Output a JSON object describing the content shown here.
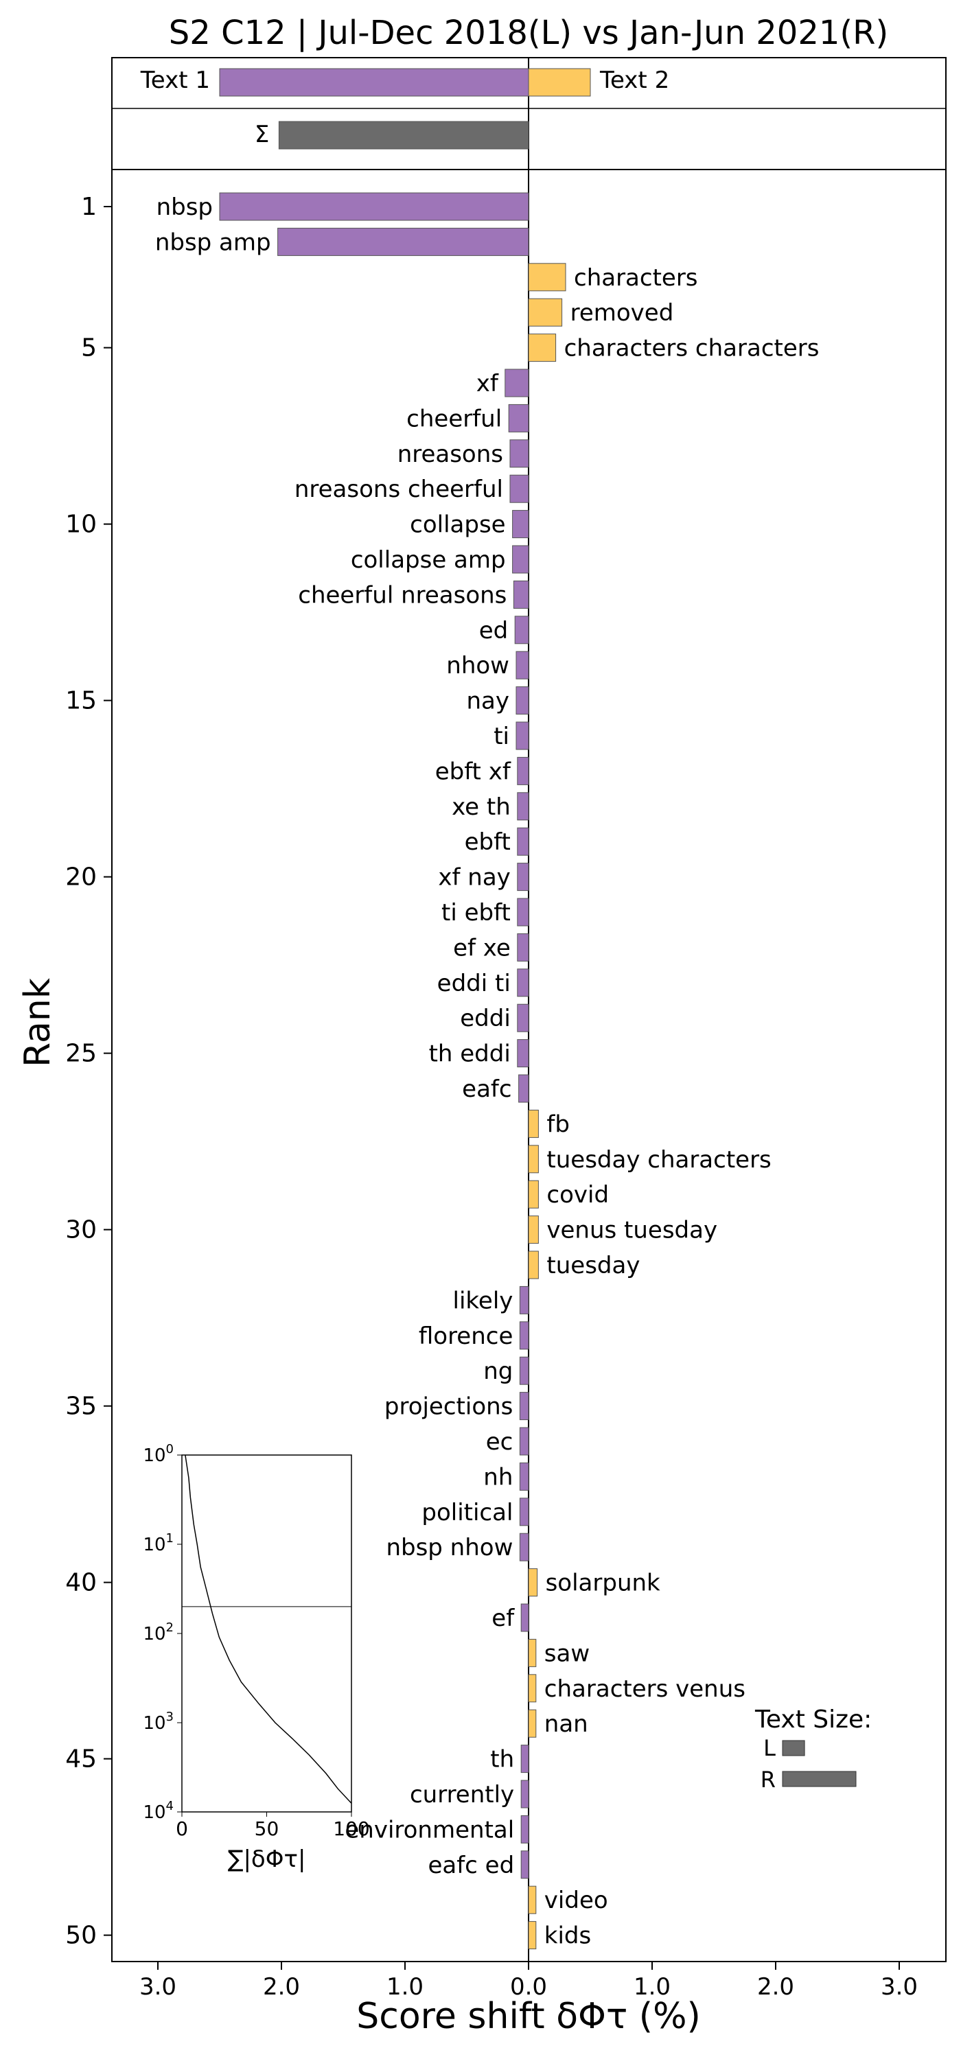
{
  "chart_data": {
    "type": "bar",
    "orientation": "horizontal",
    "title": "S2 C12 | Jul-Dec 2018(L) vs Jan-Jun 2021(R)",
    "xlabel": "Score shift δΦτ (%)",
    "ylabel": "Rank",
    "xlim": [
      -3.4,
      3.4
    ],
    "x_ticks": [
      -3,
      -2,
      -1,
      0,
      1,
      2,
      3
    ],
    "x_tick_labels": [
      "3.0",
      "2.0",
      "1.0",
      "0.0",
      "1.0",
      "2.0",
      "3.0"
    ],
    "y_ticks": [
      1,
      5,
      10,
      15,
      20,
      25,
      30,
      35,
      40,
      45,
      50
    ],
    "colors": {
      "left": "#9e75b8",
      "right": "#fdc95f",
      "total": "#6b6b6b",
      "edge": "#555555"
    },
    "summary": {
      "text1_label": "Text 1",
      "text1_value": -2.5,
      "text2_label": "Text 2",
      "text2_value": 0.5,
      "sigma_label": "Σ",
      "sigma_value": -2.02
    },
    "series": [
      {
        "rank": 1,
        "label": "nbsp",
        "value": -2.5
      },
      {
        "rank": 2,
        "label": "nbsp amp",
        "value": -2.03
      },
      {
        "rank": 3,
        "label": "characters",
        "value": 0.3
      },
      {
        "rank": 4,
        "label": "removed",
        "value": 0.27
      },
      {
        "rank": 5,
        "label": "characters characters",
        "value": 0.22
      },
      {
        "rank": 6,
        "label": "xf",
        "value": -0.19
      },
      {
        "rank": 7,
        "label": "cheerful",
        "value": -0.16
      },
      {
        "rank": 8,
        "label": "nreasons",
        "value": -0.15
      },
      {
        "rank": 9,
        "label": "nreasons cheerful",
        "value": -0.15
      },
      {
        "rank": 10,
        "label": "collapse",
        "value": -0.13
      },
      {
        "rank": 11,
        "label": "collapse amp",
        "value": -0.13
      },
      {
        "rank": 12,
        "label": "cheerful nreasons",
        "value": -0.12
      },
      {
        "rank": 13,
        "label": "ed",
        "value": -0.11
      },
      {
        "rank": 14,
        "label": "nhow",
        "value": -0.1
      },
      {
        "rank": 15,
        "label": "nay",
        "value": -0.1
      },
      {
        "rank": 16,
        "label": "ti",
        "value": -0.1
      },
      {
        "rank": 17,
        "label": "ebft xf",
        "value": -0.09
      },
      {
        "rank": 18,
        "label": "xe th",
        "value": -0.09
      },
      {
        "rank": 19,
        "label": "ebft",
        "value": -0.09
      },
      {
        "rank": 20,
        "label": "xf nay",
        "value": -0.09
      },
      {
        "rank": 21,
        "label": "ti ebft",
        "value": -0.09
      },
      {
        "rank": 22,
        "label": "ef xe",
        "value": -0.09
      },
      {
        "rank": 23,
        "label": "eddi ti",
        "value": -0.09
      },
      {
        "rank": 24,
        "label": "eddi",
        "value": -0.09
      },
      {
        "rank": 25,
        "label": "th eddi",
        "value": -0.09
      },
      {
        "rank": 26,
        "label": "eafc",
        "value": -0.08
      },
      {
        "rank": 27,
        "label": "fb",
        "value": 0.08
      },
      {
        "rank": 28,
        "label": "tuesday characters",
        "value": 0.08
      },
      {
        "rank": 29,
        "label": "covid",
        "value": 0.08
      },
      {
        "rank": 30,
        "label": "venus tuesday",
        "value": 0.08
      },
      {
        "rank": 31,
        "label": "tuesday",
        "value": 0.08
      },
      {
        "rank": 32,
        "label": "likely",
        "value": -0.07
      },
      {
        "rank": 33,
        "label": "florence",
        "value": -0.07
      },
      {
        "rank": 34,
        "label": "ng",
        "value": -0.07
      },
      {
        "rank": 35,
        "label": "projections",
        "value": -0.07
      },
      {
        "rank": 36,
        "label": "ec",
        "value": -0.07
      },
      {
        "rank": 37,
        "label": "nh",
        "value": -0.07
      },
      {
        "rank": 38,
        "label": "political",
        "value": -0.07
      },
      {
        "rank": 39,
        "label": "nbsp nhow",
        "value": -0.07
      },
      {
        "rank": 40,
        "label": "solarpunk",
        "value": 0.07
      },
      {
        "rank": 41,
        "label": "ef",
        "value": -0.06
      },
      {
        "rank": 42,
        "label": "saw",
        "value": 0.06
      },
      {
        "rank": 43,
        "label": "characters venus",
        "value": 0.06
      },
      {
        "rank": 44,
        "label": "nan",
        "value": 0.06
      },
      {
        "rank": 45,
        "label": "th",
        "value": -0.06
      },
      {
        "rank": 46,
        "label": "currently",
        "value": -0.06
      },
      {
        "rank": 47,
        "label": "environmental",
        "value": -0.06
      },
      {
        "rank": 48,
        "label": "eafc ed",
        "value": -0.06
      },
      {
        "rank": 49,
        "label": "video",
        "value": 0.06
      },
      {
        "rank": 50,
        "label": "kids",
        "value": 0.06
      }
    ],
    "text_size_legend": {
      "title": "Text Size:",
      "left_label": "L",
      "left_value": 0.3,
      "right_label": "R",
      "right_value": 1.0
    },
    "inset": {
      "type": "line",
      "xlabel": "∑|δΦτ|",
      "xlim": [
        0,
        100
      ],
      "x_ticks": [
        0,
        50,
        100
      ],
      "y_scale": "log",
      "ylim_rank": [
        1,
        10000
      ],
      "y_tick_base": "10",
      "y_tick_exponents": [
        "0",
        "1",
        "2",
        "3",
        "4"
      ],
      "reference_rank": 50,
      "curve": [
        [
          2,
          1
        ],
        [
          4,
          1.8
        ],
        [
          5,
          3
        ],
        [
          7,
          6
        ],
        [
          9,
          10
        ],
        [
          11,
          18
        ],
        [
          14,
          30
        ],
        [
          18,
          60
        ],
        [
          22,
          110
        ],
        [
          28,
          200
        ],
        [
          35,
          350
        ],
        [
          45,
          600
        ],
        [
          55,
          1000
        ],
        [
          65,
          1500
        ],
        [
          75,
          2300
        ],
        [
          85,
          3700
        ],
        [
          92,
          5500
        ],
        [
          100,
          8000
        ]
      ]
    }
  }
}
